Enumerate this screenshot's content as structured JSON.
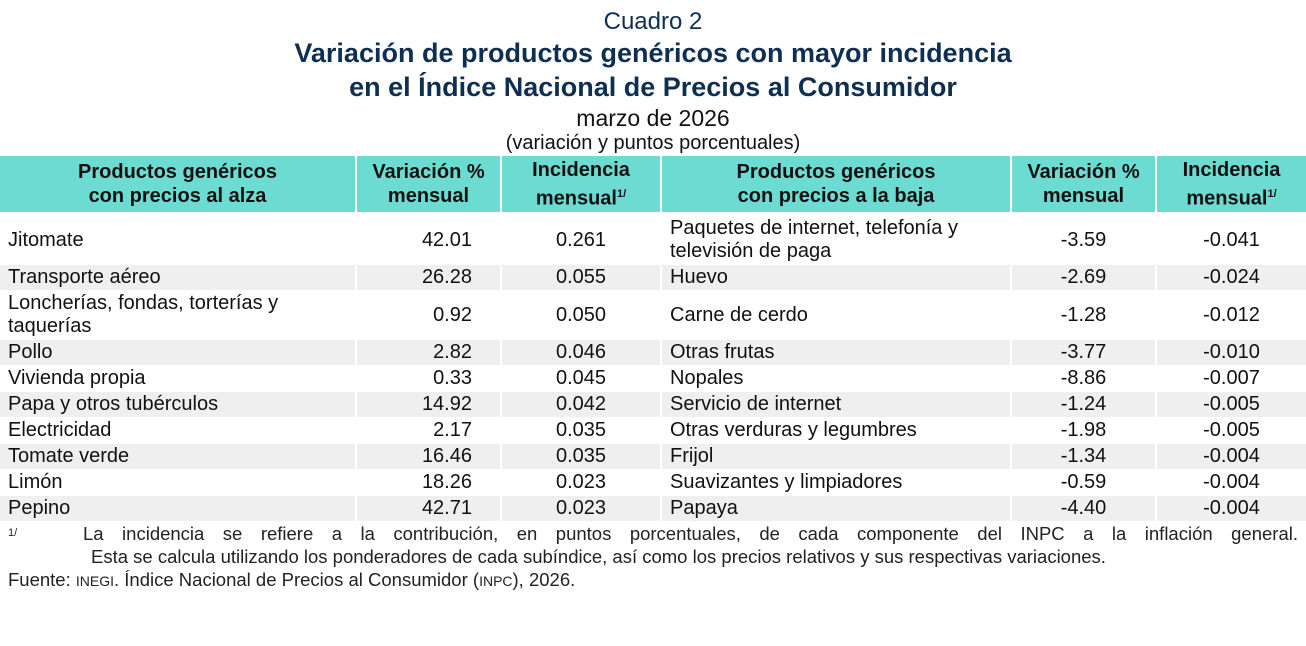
{
  "title": {
    "label": "Cuadro 2",
    "main1": "Variación de productos genéricos con mayor incidencia",
    "main2": "en el Índice Nacional de Precios al Consumidor",
    "period": "marzo de 2026",
    "units": "(variación y puntos porcentuales)"
  },
  "headers": {
    "up_product1": "Productos genéricos",
    "up_product2": "con precios al alza",
    "var1": "Variación %",
    "var2": "mensual",
    "inc1": "Incidencia",
    "inc2": "mensual",
    "inc_sup": "1/",
    "down_product1": "Productos genéricos",
    "down_product2": "con precios a la baja"
  },
  "rows": [
    {
      "up": "Jitomate",
      "up_var": "42.01",
      "up_inc": "0.261",
      "down": "Paquetes de internet, telefonía y televisión de paga",
      "down_var": "-3.59",
      "down_inc": "-0.041"
    },
    {
      "up": "Transporte aéreo",
      "up_var": "26.28",
      "up_inc": "0.055",
      "down": "Huevo",
      "down_var": "-2.69",
      "down_inc": "-0.024"
    },
    {
      "up": "Loncherías, fondas, torterías y taquerías",
      "up_var": "0.92",
      "up_inc": "0.050",
      "down": "Carne de cerdo",
      "down_var": "-1.28",
      "down_inc": "-0.012"
    },
    {
      "up": "Pollo",
      "up_var": "2.82",
      "up_inc": "0.046",
      "down": "Otras frutas",
      "down_var": "-3.77",
      "down_inc": "-0.010"
    },
    {
      "up": "Vivienda propia",
      "up_var": "0.33",
      "up_inc": "0.045",
      "down": "Nopales",
      "down_var": "-8.86",
      "down_inc": "-0.007"
    },
    {
      "up": "Papa y otros tubérculos",
      "up_var": "14.92",
      "up_inc": "0.042",
      "down": "Servicio de internet",
      "down_var": "-1.24",
      "down_inc": "-0.005"
    },
    {
      "up": "Electricidad",
      "up_var": "2.17",
      "up_inc": "0.035",
      "down": "Otras verduras y legumbres",
      "down_var": "-1.98",
      "down_inc": "-0.005"
    },
    {
      "up": "Tomate verde",
      "up_var": "16.46",
      "up_inc": "0.035",
      "down": "Frijol",
      "down_var": "-1.34",
      "down_inc": "-0.004"
    },
    {
      "up": "Limón",
      "up_var": "18.26",
      "up_inc": "0.023",
      "down": "Suavizantes y limpiadores",
      "down_var": "-0.59",
      "down_inc": "-0.004"
    },
    {
      "up": "Pepino",
      "up_var": "42.71",
      "up_inc": "0.023",
      "down": "Papaya",
      "down_var": "-4.40",
      "down_inc": "-0.004"
    }
  ],
  "notes": {
    "marker": "1/",
    "line1": "La incidencia se refiere a la contribución, en puntos porcentuales, de cada componente del INPC a la inflación general.",
    "line2": "Esta se calcula utilizando los ponderadores de cada subíndice, así como los precios relativos y sus respectivas variaciones.",
    "source_label": "Fuente:",
    "source_org": "INEGI",
    "source_text": ". Índice Nacional de Precios al Consumidor (",
    "source_abbr": "INPC",
    "source_end": "), 2026."
  },
  "colors": {
    "header_bg": "#6cdcd3",
    "title": "#0f2f52",
    "stripe": "#efefef"
  }
}
